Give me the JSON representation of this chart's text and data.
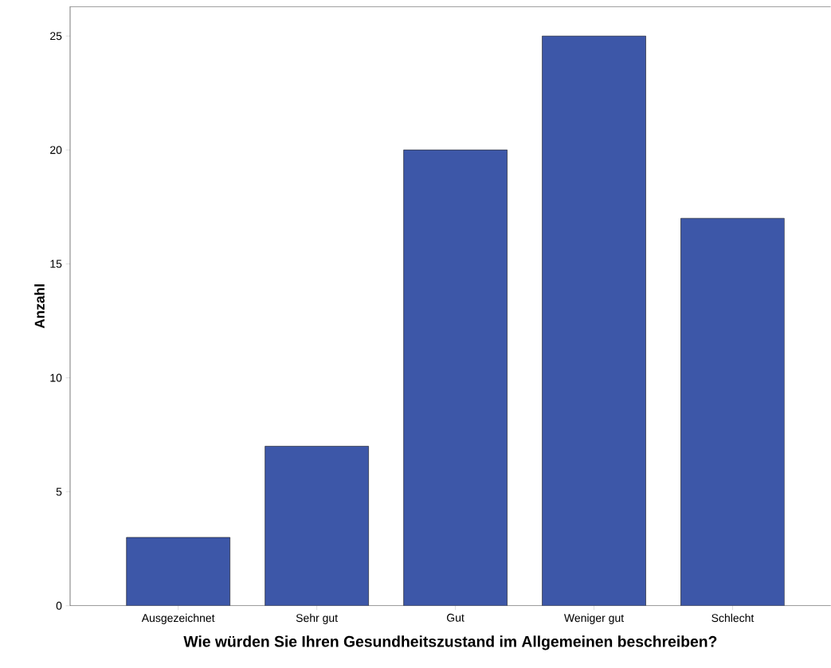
{
  "chart_data": {
    "type": "bar",
    "xlabel": "Wie würden Sie Ihren Gesundheitszustand im Allgemeinen beschreiben?",
    "ylabel": "Anzahl",
    "categories": [
      "Ausgezeichnet",
      "Sehr gut",
      "Gut",
      "Weniger gut",
      "Schlecht"
    ],
    "values": [
      3,
      7,
      20,
      25,
      17
    ],
    "color": "#3d57a8",
    "ylim": [
      0,
      26.3
    ],
    "yticks": [
      0,
      5,
      10,
      15,
      20,
      25
    ]
  }
}
